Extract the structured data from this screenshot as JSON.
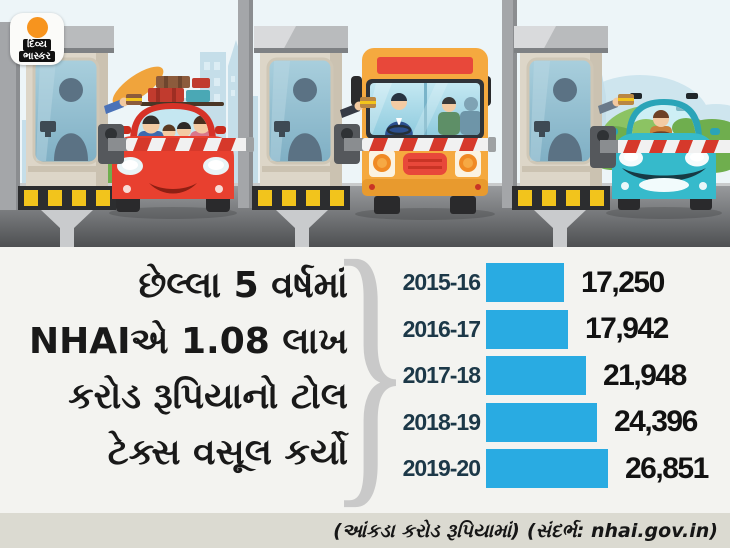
{
  "brand": {
    "logo_text_line1": "દિવ્ય",
    "logo_text_line2": "ભાસ્કર",
    "logo_dot_color": "#F7941E"
  },
  "headline": {
    "lines": [
      "છેલ્લા 5 વર્ષમાં",
      "NHAIએ 1.08 લાખ",
      "કરોડ રૂપિયાનો ટોલ",
      "ટેક્સ વસૂલ કર્યો"
    ]
  },
  "decor": {
    "brace": "}"
  },
  "chart_data": {
    "type": "bar",
    "orientation": "horizontal",
    "categories": [
      "2015-16",
      "2016-17",
      "2017-18",
      "2018-19",
      "2019-20"
    ],
    "values": [
      17250,
      17942,
      21948,
      24396,
      26851
    ],
    "value_labels": [
      "17,250",
      "17,942",
      "21,948",
      "24,396",
      "26,851"
    ],
    "bar_color": "#29ABE2",
    "category_color": "#1C3848",
    "value_color": "#121212",
    "xlim": [
      0,
      27000
    ],
    "legend": "none",
    "grid": false,
    "unit_note": "(આંકડા કરોડ રૂપિયામાં)",
    "source_note": "(સંદર્ભ: nhai.gov.in)"
  },
  "illustration": {
    "scene": "toll-plaza",
    "vehicles": [
      "red-family-car",
      "orange-bus",
      "teal-car"
    ]
  }
}
